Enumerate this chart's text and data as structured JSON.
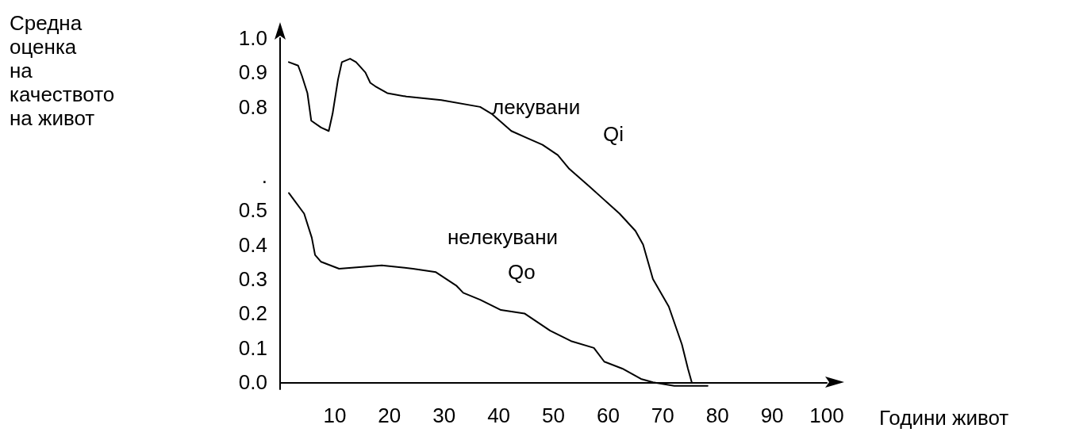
{
  "chart_data": {
    "type": "line",
    "xlabel": "Години живот",
    "xlim": [
      0,
      100
    ],
    "xticks": [
      10,
      20,
      30,
      40,
      50,
      60,
      70,
      80,
      90,
      100
    ],
    "ylim": [
      -0.02,
      1.0
    ],
    "yticks": [
      {
        "value": 0,
        "label": "0.0"
      },
      0.1,
      0.2,
      0.3,
      0.4,
      0.5,
      {
        "value": 0.6,
        "label": "."
      },
      0.8,
      0.9,
      {
        "value": 1.0,
        "label": "1.0"
      }
    ],
    "grid": false,
    "marker": "none",
    "line_style": "solid",
    "annotations": [
      "Средна оценка на качеството на живот",
      "лекувани",
      "Qi",
      "нелекувани",
      "Qo"
    ],
    "series": [
      {
        "color": "#000000",
        "x": [
          1.6,
          3.3,
          4.0,
          5.0,
          5.7,
          7.5,
          8.9,
          9.6,
          10.6,
          11.3,
          12.8,
          13.9,
          15.6,
          16.5,
          17.4,
          19.6,
          23.1,
          29.5,
          36.6,
          38.7,
          42.3,
          45.1,
          48,
          50.8,
          52.9,
          56.5,
          59.3,
          62.1,
          65,
          66.4,
          68.2,
          71.1,
          73.5,
          74.6,
          75.3
        ],
        "values": [
          0.93,
          0.92,
          0.89,
          0.84,
          0.76,
          0.74,
          0.73,
          0.78,
          0.88,
          0.93,
          0.94,
          0.93,
          0.9,
          0.87,
          0.86,
          0.84,
          0.83,
          0.82,
          0.8,
          0.78,
          0.73,
          0.71,
          0.69,
          0.66,
          0.62,
          0.57,
          0.53,
          0.49,
          0.44,
          0.4,
          0.3,
          0.22,
          0.11,
          0.04,
          0
        ]
      },
      {
        "color": "#000000",
        "x": [
          1.6,
          4.4,
          5.8,
          6.4,
          7.5,
          10.8,
          18.6,
          24.3,
          28.5,
          32.3,
          33.5,
          36.6,
          40.4,
          44.7,
          49.4,
          53.2,
          57.4,
          59.3,
          62.6,
          66,
          68.2,
          72.1,
          78.2
        ],
        "values": [
          0.55,
          0.49,
          0.42,
          0.37,
          0.35,
          0.33,
          0.34,
          0.33,
          0.32,
          0.28,
          0.26,
          0.24,
          0.21,
          0.2,
          0.15,
          0.12,
          0.1,
          0.06,
          0.04,
          0.01,
          0,
          -0.01,
          -0.01
        ]
      }
    ]
  }
}
